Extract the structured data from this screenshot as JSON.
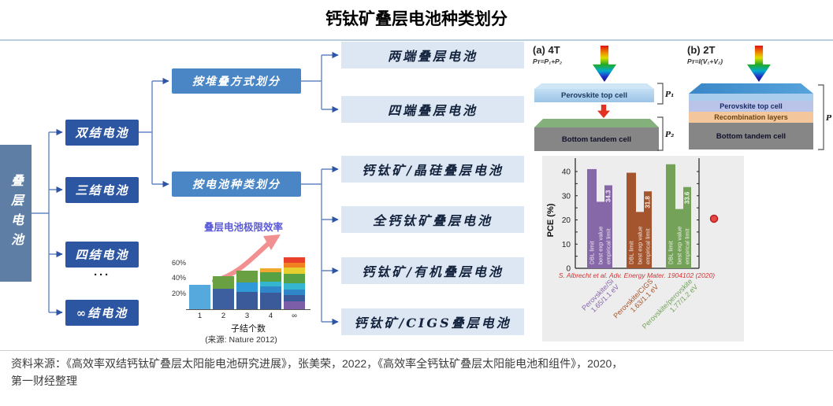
{
  "title": "钙钛矿叠层电池种类划分",
  "tree": {
    "root_label": "叠层电池",
    "junctions": [
      {
        "label": "双结电池"
      },
      {
        "label": "三结电池"
      },
      {
        "label": "四结电池"
      },
      {
        "label": "∞结电池"
      }
    ],
    "ellipsis": "···",
    "methods": [
      {
        "label": "按堆叠方式划分"
      },
      {
        "label": "按电池种类划分"
      }
    ],
    "types": [
      {
        "label": "两端叠层电池"
      },
      {
        "label": "四端叠层电池"
      },
      {
        "label": "钙钛矿/晶硅叠层电池"
      },
      {
        "label": "全钙钛矿叠层电池"
      },
      {
        "label": "钙钛矿/有机叠层电池"
      },
      {
        "label": "钙钛矿/CIGS叠层电池"
      }
    ]
  },
  "panel_a": {
    "tag": "(a) 4T",
    "formula": "Pᴛ=P₁+P₂",
    "top_cell": "Perovskite top cell",
    "bottom_cell": "Bottom tandem cell",
    "bracket_top": "P₁",
    "bracket_bottom": "P₂"
  },
  "panel_b": {
    "tag": "(b) 2T",
    "formula": "Pᴛ=I(V₁+V₂)",
    "top_cell": "Perovskite top cell",
    "mid_layer": "Recombination layers",
    "bottom_cell": "Bottom tandem cell",
    "bracket": "P"
  },
  "chart_data": [
    {
      "type": "bar",
      "name": "tandem-limit-efficiency",
      "title": "叠层电池极限效率",
      "categories": [
        "1",
        "2",
        "3",
        "4",
        "∞"
      ],
      "xlabel": "子结个数",
      "source_note": "(来源: Nature 2012)",
      "ylim": [
        0,
        75
      ],
      "yticks": [
        {
          "v": 20,
          "label": "20%"
        },
        {
          "v": 40,
          "label": "40%"
        },
        {
          "v": 60,
          "label": "60%"
        }
      ],
      "totals": [
        32,
        43,
        50,
        53,
        68
      ],
      "stacks": [
        [
          {
            "v": 32,
            "color": "#55a9dd"
          }
        ],
        [
          {
            "v": 27,
            "color": "#3e5f9f"
          },
          {
            "v": 16,
            "color": "#68a042"
          }
        ],
        [
          {
            "v": 23,
            "color": "#3a5a9a"
          },
          {
            "v": 12,
            "color": "#2f9ad7"
          },
          {
            "v": 15,
            "color": "#68a042"
          }
        ],
        [
          {
            "v": 21,
            "color": "#3a5a9a"
          },
          {
            "v": 9,
            "color": "#2f86c8"
          },
          {
            "v": 6,
            "color": "#35b5d0"
          },
          {
            "v": 12,
            "color": "#57a044"
          },
          {
            "v": 5,
            "color": "#f0a830"
          }
        ],
        [
          {
            "v": 10,
            "color": "#7c5ea8"
          },
          {
            "v": 8,
            "color": "#3a5a9a"
          },
          {
            "v": 8,
            "color": "#2f86c8"
          },
          {
            "v": 8,
            "color": "#35b5d0"
          },
          {
            "v": 12,
            "color": "#57a044"
          },
          {
            "v": 8,
            "color": "#e6cf2e"
          },
          {
            "v": 7,
            "color": "#f08020"
          },
          {
            "v": 7,
            "color": "#e8402a"
          }
        ]
      ]
    },
    {
      "type": "bar",
      "name": "pce-comparison",
      "ylabel": "PCE (%)",
      "ylim": [
        0,
        45
      ],
      "yticks": [
        0,
        10,
        20,
        30,
        40
      ],
      "bar_labels": [
        "DBL limit",
        "best exp value",
        "empirical limit"
      ],
      "groups": [
        {
          "label": "Perovskite/Si",
          "sublabel": "1.65/1.1 eV",
          "color": "#8667a8",
          "values": [
            41,
            27.5,
            34.3
          ]
        },
        {
          "label": "Perovskite/CIGS",
          "sublabel": "1.63/1.1 eV",
          "color": "#a5552d",
          "values": [
            39.5,
            23.3,
            31.8
          ]
        },
        {
          "label": "Perovskite/perovskite",
          "sublabel": "1.77/1.2 eV",
          "color": "#74a259",
          "values": [
            43,
            24.5,
            33.6
          ]
        }
      ],
      "annotated_values": [
        "34.3",
        "31.8",
        "33.6"
      ],
      "caption": "S. Albrecht et al. Adv. Energy Mater. 1904102 (2020)",
      "point": {
        "pce": 20.5,
        "color": "#e84545"
      }
    }
  ],
  "source": {
    "line1": "资料来源：《高效率双结钙钛矿叠层太阳能电池研究进展》，张美荣，2022，《高效率全钙钛矿叠层太阳能电池和组件》，2020，",
    "line2": "第一财经整理"
  },
  "colors": {
    "root_box": "#5e7ea6",
    "junction_box": "#2c55a2",
    "method_box": "#4a86c6",
    "type_box": "#dde7f3",
    "connector": "#6286c4",
    "mini_title": "#5b5bd6",
    "trend_arrow": "#f29091"
  }
}
